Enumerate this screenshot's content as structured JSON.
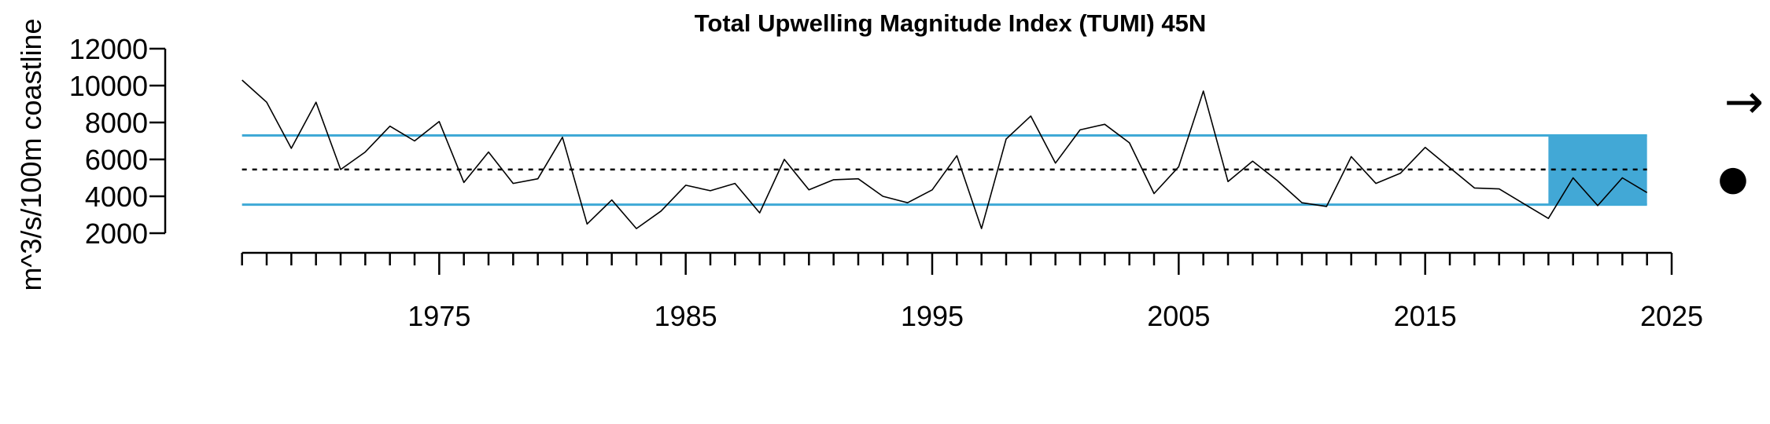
{
  "chart_data": {
    "type": "line",
    "title": "Total Upwelling Magnitude Index (TUMI) 45N",
    "xlabel": "",
    "ylabel": "m^3/s/100m coastline",
    "xlim": [
      1966.5,
      2025
    ],
    "ylim": [
      2000,
      12000
    ],
    "yticks": [
      2000,
      4000,
      6000,
      8000,
      10000,
      12000
    ],
    "xticks_labeled": [
      1975,
      1985,
      1995,
      2005,
      2015,
      2025
    ],
    "xticks_minor_start": 1967,
    "xticks_minor_end": 2025,
    "grid": false,
    "series": [
      {
        "color": "#000000",
        "x": [
          1967,
          1968,
          1969,
          1970,
          1971,
          1972,
          1973,
          1974,
          1975,
          1976,
          1977,
          1978,
          1979,
          1980,
          1981,
          1982,
          1983,
          1984,
          1985,
          1986,
          1987,
          1988,
          1989,
          1990,
          1991,
          1992,
          1993,
          1994,
          1995,
          1996,
          1997,
          1998,
          1999,
          2000,
          2001,
          2002,
          2003,
          2004,
          2005,
          2006,
          2007,
          2008,
          2009,
          2010,
          2011,
          2012,
          2013,
          2014,
          2015,
          2016,
          2017,
          2018,
          2019,
          2020,
          2021,
          2022,
          2023,
          2024
        ],
        "y": [
          10300,
          9100,
          6600,
          9100,
          5450,
          6400,
          7800,
          7000,
          8050,
          4750,
          6400,
          4700,
          4950,
          7200,
          2500,
          3800,
          2250,
          3200,
          4600,
          4300,
          4700,
          3100,
          6000,
          4350,
          4900,
          4950,
          4000,
          3650,
          4350,
          6200,
          2250,
          7100,
          8350,
          5800,
          7600,
          7900,
          6900,
          4150,
          5600,
          9700,
          4800,
          5900,
          4850,
          3650,
          3450,
          6150,
          4700,
          5250,
          6650,
          5550,
          4450,
          4400,
          3600,
          2800,
          5000,
          3500,
          5000,
          4200
        ]
      }
    ],
    "mean": 5450,
    "upper_sd": 7300,
    "lower_sd": 3550,
    "recent_window": [
      2020,
      2024
    ],
    "colors": {
      "sd_lines": "#3fa9d6",
      "recent_fill": "#42a8d6",
      "series": "#000000"
    },
    "indicators": {
      "trend": "→",
      "mean_status": "●"
    }
  }
}
